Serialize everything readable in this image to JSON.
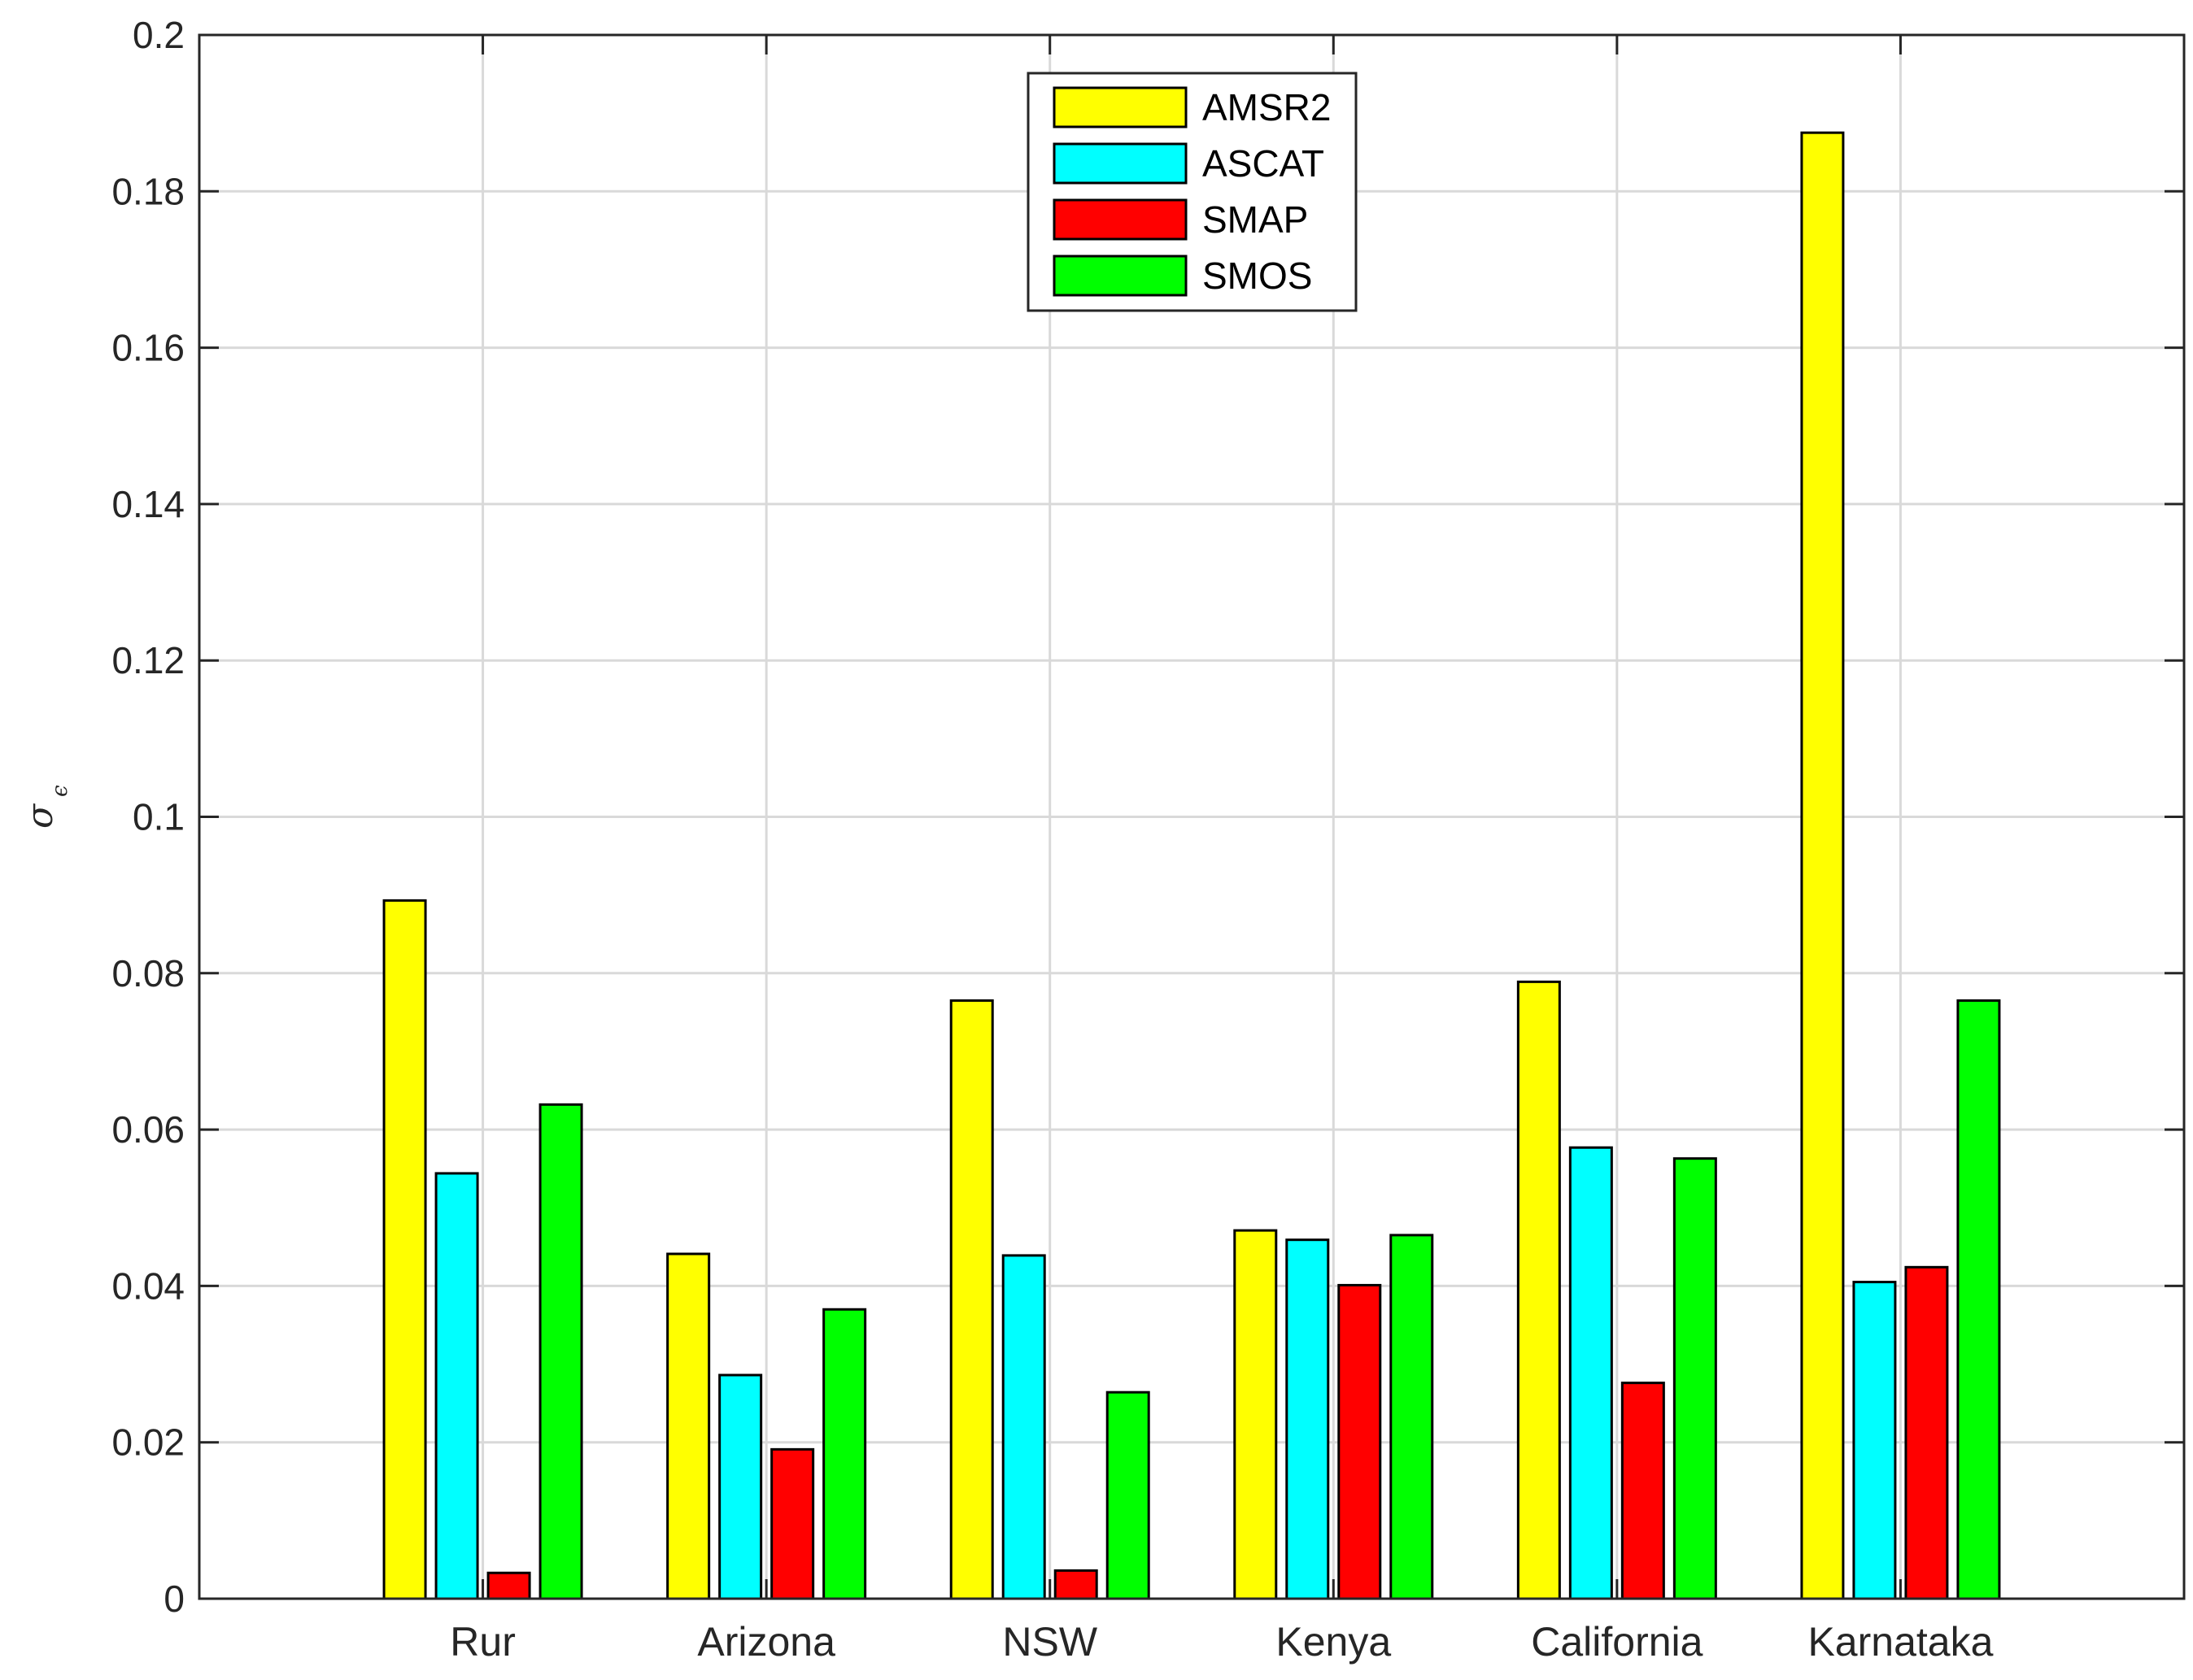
{
  "chart_data": {
    "type": "bar",
    "categories": [
      "Rur",
      "Arizona",
      "NSW",
      "Kenya",
      "California",
      "Karnataka"
    ],
    "series": [
      {
        "name": "AMSR2",
        "color": "#ffff00",
        "values": [
          0.0893,
          0.0441,
          0.0765,
          0.0471,
          0.0789,
          0.1875
        ]
      },
      {
        "name": "ASCAT",
        "color": "#00ffff",
        "values": [
          0.0544,
          0.0286,
          0.0439,
          0.0459,
          0.0577,
          0.0405
        ]
      },
      {
        "name": "SMAP",
        "color": "#ff0000",
        "values": [
          0.0033,
          0.0191,
          0.0036,
          0.0401,
          0.0276,
          0.0424
        ]
      },
      {
        "name": "SMOS",
        "color": "#00ff00",
        "values": [
          0.0632,
          0.037,
          0.0264,
          0.0465,
          0.0563,
          0.0765
        ]
      }
    ],
    "ylabel": "σ",
    "ylabel_sub": "ϵ",
    "ylim": [
      0,
      0.2
    ],
    "yticks": [
      "0",
      "0.02",
      "0.04",
      "0.06",
      "0.08",
      "0.1",
      "0.12",
      "0.14",
      "0.16",
      "0.18",
      "0.2"
    ],
    "ytick_values": [
      0,
      0.02,
      0.04,
      0.06,
      0.08,
      0.1,
      0.12,
      0.14,
      0.16,
      0.18,
      0.2
    ],
    "grid": true,
    "legend_position": "top-center"
  }
}
